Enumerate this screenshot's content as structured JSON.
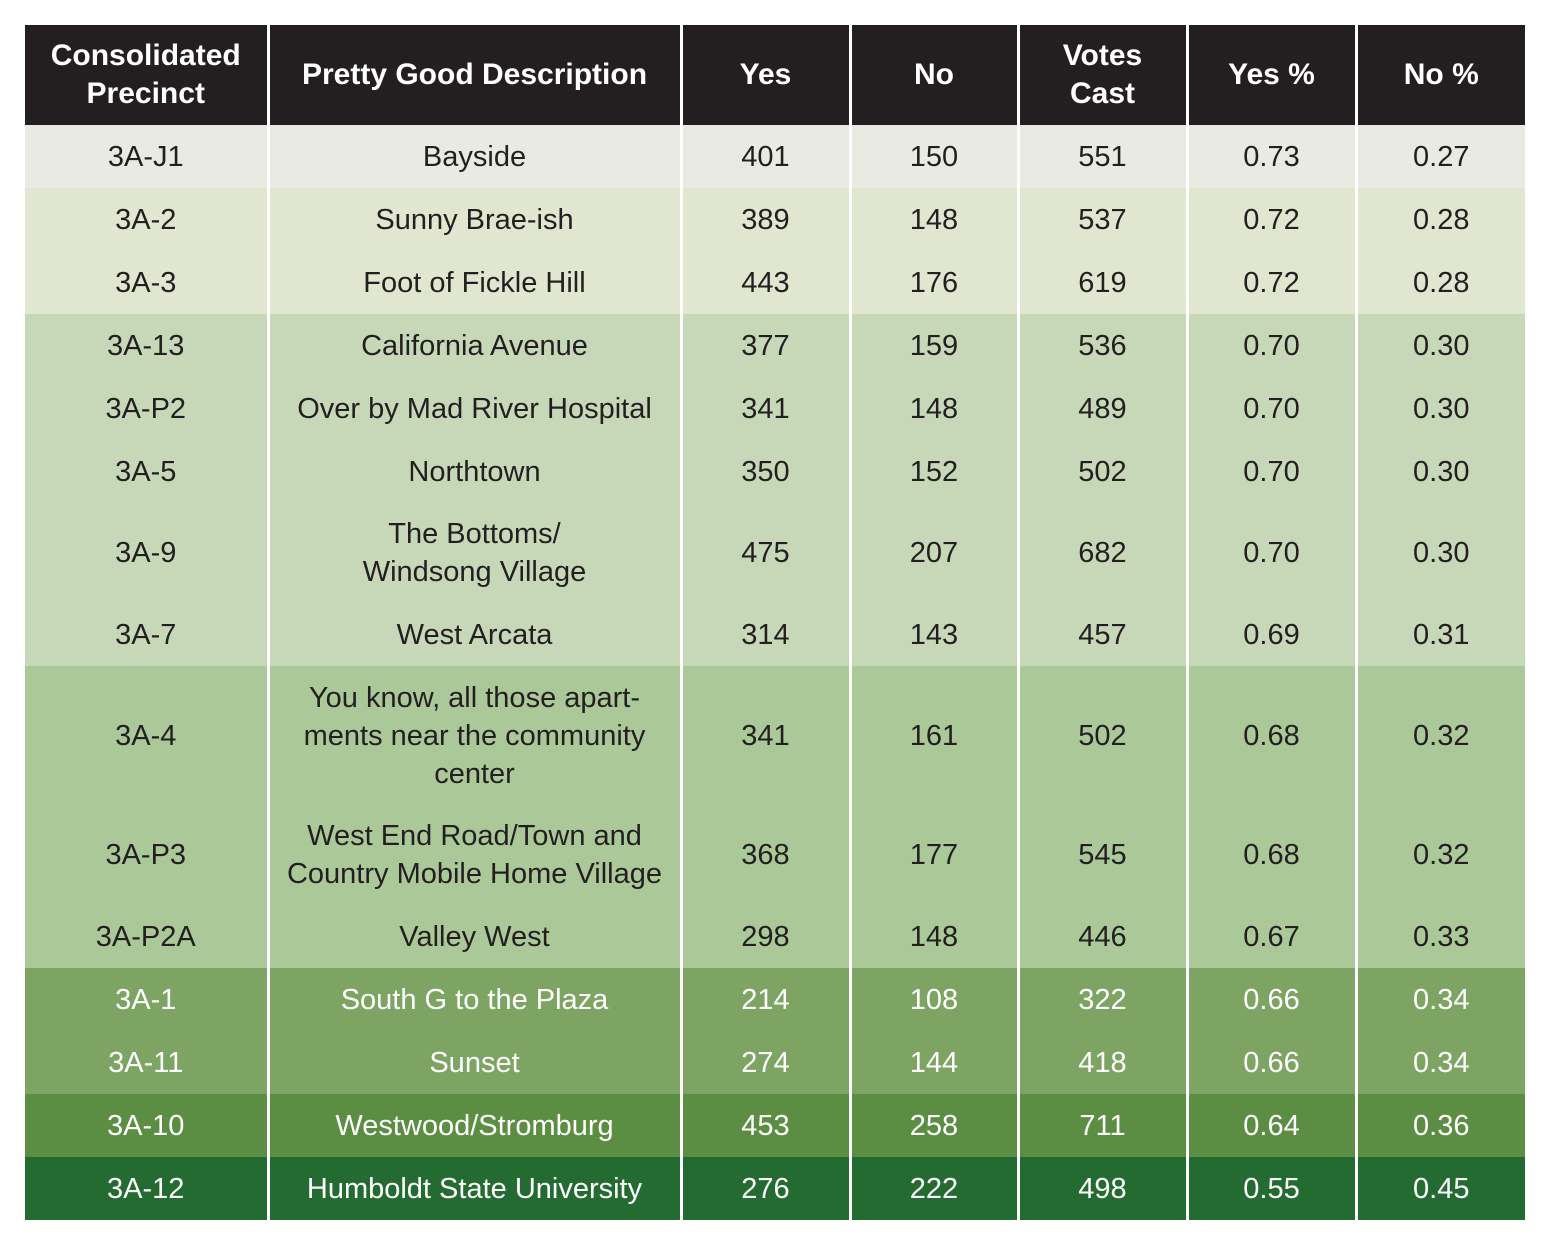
{
  "chart_data": {
    "type": "table",
    "columns": [
      "Consolidated Precinct",
      "Pretty Good Description",
      "Yes",
      "No",
      "Votes Cast",
      "Yes %",
      "No %"
    ],
    "rows": [
      {
        "precinct": "3A-J1",
        "description": "Bayside",
        "yes": "401",
        "no": "150",
        "votes_cast": "551",
        "yes_pct": "0.73",
        "no_pct": "0.27",
        "bg": "#e9ebe3",
        "fg": "#231f20",
        "lines": 1
      },
      {
        "precinct": "3A-2",
        "description": "Sunny Brae-ish",
        "yes": "389",
        "no": "148",
        "votes_cast": "537",
        "yes_pct": "0.72",
        "no_pct": "0.28",
        "bg": "#e0e6cf",
        "fg": "#231f20",
        "lines": 1
      },
      {
        "precinct": "3A-3",
        "description": "Foot of Fickle Hill",
        "yes": "443",
        "no": "176",
        "votes_cast": "619",
        "yes_pct": "0.72",
        "no_pct": "0.28",
        "bg": "#e0e6cf",
        "fg": "#231f20",
        "lines": 1
      },
      {
        "precinct": "3A-13",
        "description": "California Avenue",
        "yes": "377",
        "no": "159",
        "votes_cast": "536",
        "yes_pct": "0.70",
        "no_pct": "0.30",
        "bg": "#c7d8b8",
        "fg": "#231f20",
        "lines": 1
      },
      {
        "precinct": "3A-P2",
        "description": "Over by Mad River Hospital",
        "yes": "341",
        "no": "148",
        "votes_cast": "489",
        "yes_pct": "0.70",
        "no_pct": "0.30",
        "bg": "#c7d8b8",
        "fg": "#231f20",
        "lines": 1
      },
      {
        "precinct": "3A-5",
        "description": "Northtown",
        "yes": "350",
        "no": "152",
        "votes_cast": "502",
        "yes_pct": "0.70",
        "no_pct": "0.30",
        "bg": "#c7d8b8",
        "fg": "#231f20",
        "lines": 1
      },
      {
        "precinct": "3A-9",
        "description": "The Bottoms/\nWindsong Village",
        "yes": "475",
        "no": "207",
        "votes_cast": "682",
        "yes_pct": "0.70",
        "no_pct": "0.30",
        "bg": "#c7d8b8",
        "fg": "#231f20",
        "lines": 2
      },
      {
        "precinct": "3A-7",
        "description": "West Arcata",
        "yes": "314",
        "no": "143",
        "votes_cast": "457",
        "yes_pct": "0.69",
        "no_pct": "0.31",
        "bg": "#c7d8b8",
        "fg": "#231f20",
        "lines": 1
      },
      {
        "precinct": "3A-4",
        "description": "You know, all those apart-\nments near the community\ncenter",
        "yes": "341",
        "no": "161",
        "votes_cast": "502",
        "yes_pct": "0.68",
        "no_pct": "0.32",
        "bg": "#abc899",
        "fg": "#231f20",
        "lines": 3
      },
      {
        "precinct": "3A-P3",
        "description": "West End Road/Town and\nCountry Mobile Home Village",
        "yes": "368",
        "no": "177",
        "votes_cast": "545",
        "yes_pct": "0.68",
        "no_pct": "0.32",
        "bg": "#abc899",
        "fg": "#231f20",
        "lines": 2
      },
      {
        "precinct": "3A-P2A",
        "description": "Valley West",
        "yes": "298",
        "no": "148",
        "votes_cast": "446",
        "yes_pct": "0.67",
        "no_pct": "0.33",
        "bg": "#abc899",
        "fg": "#231f20",
        "lines": 1
      },
      {
        "precinct": "3A-1",
        "description": "South G to the Plaza",
        "yes": "214",
        "no": "108",
        "votes_cast": "322",
        "yes_pct": "0.66",
        "no_pct": "0.34",
        "bg": "#7ea464",
        "fg": "#ffffff",
        "lines": 1
      },
      {
        "precinct": "3A-11",
        "description": "Sunset",
        "yes": "274",
        "no": "144",
        "votes_cast": "418",
        "yes_pct": "0.66",
        "no_pct": "0.34",
        "bg": "#7ea464",
        "fg": "#ffffff",
        "lines": 1
      },
      {
        "precinct": "3A-10",
        "description": "Westwood/Stromburg",
        "yes": "453",
        "no": "258",
        "votes_cast": "711",
        "yes_pct": "0.64",
        "no_pct": "0.36",
        "bg": "#5b8d43",
        "fg": "#ffffff",
        "lines": 1
      },
      {
        "precinct": "3A-12",
        "description": "Humboldt State University",
        "yes": "276",
        "no": "222",
        "votes_cast": "498",
        "yes_pct": "0.55",
        "no_pct": "0.45",
        "bg": "#236b30",
        "fg": "#ffffff",
        "lines": 1
      }
    ]
  },
  "header": {
    "precinct": "Consolidated\nPrecinct",
    "description": "Pretty Good Description",
    "yes": "Yes",
    "no": "No",
    "votes_cast": "Votes\nCast",
    "yes_pct": "Yes %",
    "no_pct": "No %"
  },
  "colors": {
    "header_bg": "#231f20",
    "header_text": "#ffffff"
  }
}
